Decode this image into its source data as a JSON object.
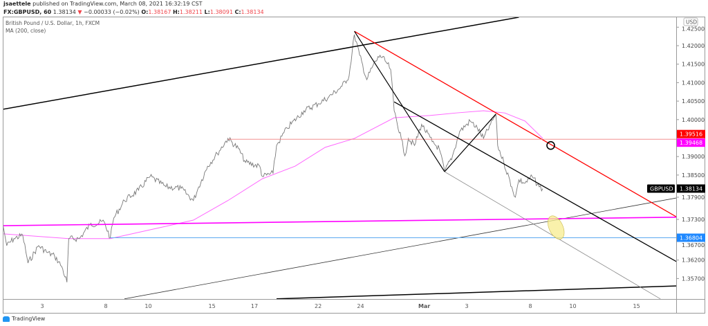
{
  "header": {
    "author": "jsaettele",
    "published": "published on TradingView.com, March 08, 2021 16:32:19 CST",
    "symbol": "FX:GBPUSD, 60",
    "last": "1.38134",
    "change": "−0.00033 (−0.02%)",
    "o_label": "O:",
    "o": "1.38167",
    "h_label": "H:",
    "h": "1.38211",
    "l_label": "L:",
    "l": "1.38091",
    "c_label": "C:",
    "c": "1.38134",
    "down_icon": "triangle-down-icon"
  },
  "legend": {
    "title": "British Pound / U.S. Dollar, 1h, FXCM",
    "ma": "MA (200, close)"
  },
  "footer": {
    "logo": "TradingView"
  },
  "colors": {
    "price": "#787878",
    "ma": "#ff66ff",
    "trend_red": "#ff0000",
    "magenta": "#ff00ff",
    "blue": "#2196f3",
    "black": "#000000",
    "highlight": "#f7ec8f"
  },
  "chart_data": {
    "type": "line",
    "symbol": "GBPUSD",
    "currency_label": "USD",
    "ylim": [
      1.3515,
      1.4286
    ],
    "y_ticks": [
      "1.42500",
      "1.42000",
      "1.41500",
      "1.41000",
      "1.40500",
      "1.40000",
      "1.39000",
      "1.38500",
      "1.37900",
      "1.37300",
      "1.36700",
      "1.36200",
      "1.35700"
    ],
    "x_ticks": [
      {
        "date": "2021-02-03",
        "label": "3"
      },
      {
        "date": "2021-02-08",
        "label": "8"
      },
      {
        "date": "2021-02-10",
        "label": "10"
      },
      {
        "date": "2021-02-15",
        "label": "15"
      },
      {
        "date": "2021-02-17",
        "label": "17"
      },
      {
        "date": "2021-02-22",
        "label": "22"
      },
      {
        "date": "2021-02-24",
        "label": "24"
      },
      {
        "date": "2021-03-01",
        "label": "Mar"
      },
      {
        "date": "2021-03-03",
        "label": "3"
      },
      {
        "date": "2021-03-08",
        "label": "8"
      },
      {
        "date": "2021-03-10",
        "label": "10"
      },
      {
        "date": "2021-03-15",
        "label": "15"
      }
    ],
    "series": [
      {
        "name": "GBPUSD",
        "points": [
          [
            "2021-02-01 04:00",
            1.3711
          ],
          [
            "2021-02-01 08:00",
            1.3659
          ],
          [
            "2021-02-01 16:00",
            1.3678
          ],
          [
            "2021-02-02 02:00",
            1.3687
          ],
          [
            "2021-02-02 08:00",
            1.3612
          ],
          [
            "2021-02-02 20:00",
            1.3659
          ],
          [
            "2021-02-03 06:00",
            1.364
          ],
          [
            "2021-02-03 14:00",
            1.3631
          ],
          [
            "2021-02-03 22:00",
            1.3603
          ],
          [
            "2021-02-04 04:00",
            1.356
          ],
          [
            "2021-02-04 06:00",
            1.3678
          ],
          [
            "2021-02-04 18:00",
            1.3678
          ],
          [
            "2021-02-05 06:00",
            1.3715
          ],
          [
            "2021-02-05 22:00",
            1.3724
          ],
          [
            "2021-02-08 05:00",
            1.368
          ],
          [
            "2021-02-08 09:00",
            1.3734
          ],
          [
            "2021-02-08 21:00",
            1.3781
          ],
          [
            "2021-02-09 13:00",
            1.3809
          ],
          [
            "2021-02-10 02:00",
            1.3846
          ],
          [
            "2021-02-10 20:00",
            1.3818
          ],
          [
            "2021-02-11 13:00",
            1.3814
          ],
          [
            "2021-02-12 03:00",
            1.3781
          ],
          [
            "2021-02-12 09:00",
            1.3818
          ],
          [
            "2021-02-12 19:00",
            1.3874
          ],
          [
            "2021-02-15 06:00",
            1.3908
          ],
          [
            "2021-02-15 18:00",
            1.3949
          ],
          [
            "2021-02-16 06:00",
            1.3921
          ],
          [
            "2021-02-16 14:00",
            1.3884
          ],
          [
            "2021-02-17 06:00",
            1.3874
          ],
          [
            "2021-02-17 09:00",
            1.3846
          ],
          [
            "2021-02-17 21:00",
            1.3855
          ],
          [
            "2021-02-18 01:00",
            1.393
          ],
          [
            "2021-02-18 13:00",
            1.3977
          ],
          [
            "2021-02-19 08:00",
            1.4024
          ],
          [
            "2021-02-22 00:00",
            1.4043
          ],
          [
            "2021-02-22 12:00",
            1.4061
          ],
          [
            "2021-02-23 03:00",
            1.409
          ],
          [
            "2021-02-23 11:00",
            1.4118
          ],
          [
            "2021-02-23 17:00",
            1.423
          ],
          [
            "2021-02-23 23:00",
            1.4174
          ],
          [
            "2021-02-24 07:00",
            1.4108
          ],
          [
            "2021-02-24 14:00",
            1.4146
          ],
          [
            "2021-02-24 22:00",
            1.4174
          ],
          [
            "2021-02-25 05:00",
            1.4155
          ],
          [
            "2021-02-25 10:00",
            1.4136
          ],
          [
            "2021-02-25 14:00",
            1.4024
          ],
          [
            "2021-02-25 22:00",
            1.3949
          ],
          [
            "2021-02-26 02:00",
            1.3902
          ],
          [
            "2021-02-26 06:00",
            1.3949
          ],
          [
            "2021-02-26 13:00",
            1.393
          ],
          [
            "2021-02-26 21:00",
            1.3987
          ],
          [
            "2021-03-01 09:00",
            1.394
          ],
          [
            "2021-03-01 17:00",
            1.3921
          ],
          [
            "2021-03-01 23:00",
            1.3859
          ],
          [
            "2021-03-02 08:00",
            1.3902
          ],
          [
            "2021-03-02 16:00",
            1.3968
          ],
          [
            "2021-03-03 04:00",
            1.3996
          ],
          [
            "2021-03-03 12:00",
            1.3977
          ],
          [
            "2021-03-03 19:00",
            1.3949
          ],
          [
            "2021-03-04 03:00",
            1.3987
          ],
          [
            "2021-03-04 09:00",
            1.4015
          ],
          [
            "2021-03-04 11:00",
            1.393
          ],
          [
            "2021-03-04 18:00",
            1.3884
          ],
          [
            "2021-03-05 03:00",
            1.3818
          ],
          [
            "2021-03-05 07:00",
            1.379
          ],
          [
            "2021-03-05 11:00",
            1.3837
          ],
          [
            "2021-03-05 18:00",
            1.3828
          ],
          [
            "2021-03-08 02:00",
            1.3846
          ],
          [
            "2021-03-08 10:00",
            1.3818
          ],
          [
            "2021-03-08 14:00",
            1.38134
          ]
        ]
      },
      {
        "name": "MA (200, close)",
        "points": [
          [
            "2021-02-01 04:00",
            1.3691
          ],
          [
            "2021-02-04 06:00",
            1.3678
          ],
          [
            "2021-02-08 05:00",
            1.3678
          ],
          [
            "2021-02-10 10:00",
            1.3706
          ],
          [
            "2021-02-12 03:00",
            1.3728
          ],
          [
            "2021-02-15 18:00",
            1.3781
          ],
          [
            "2021-02-17 09:00",
            1.384
          ],
          [
            "2021-02-18 22:00",
            1.3874
          ],
          [
            "2021-02-22 08:00",
            1.3925
          ],
          [
            "2021-02-23 17:00",
            1.3949
          ],
          [
            "2021-02-25 14:00",
            1.4005
          ],
          [
            "2021-03-01 06:00",
            1.4011
          ],
          [
            "2021-03-02 12:00",
            1.4018
          ],
          [
            "2021-03-03 19:00",
            1.4024
          ],
          [
            "2021-03-04 19:00",
            1.4018
          ],
          [
            "2021-03-05 18:00",
            1.3996
          ],
          [
            "2021-03-08 14:00",
            1.3949
          ]
        ]
      }
    ],
    "drawings": [
      {
        "type": "trendline",
        "color": "#000000",
        "width": 1.5,
        "from": [
          "2021-02-01 04:00",
          1.4028
        ],
        "to": [
          "2021-03-05 11:00",
          1.4277
        ]
      },
      {
        "type": "trendline",
        "color": "#000000",
        "width": 1.5,
        "from": [
          "2021-02-18 01:00",
          1.3515
        ],
        "to": [
          "2021-03-16 21:00",
          1.355
        ]
      },
      {
        "type": "trendline",
        "color": "#333333",
        "width": 0.8,
        "from": [
          "2021-02-08 21:00",
          1.3515
        ],
        "to": [
          "2021-03-16 21:00",
          1.3788
        ]
      },
      {
        "type": "trendline",
        "color": "#ff0000",
        "width": 1.3,
        "from": [
          "2021-02-23 17:00",
          1.4239
        ],
        "to": [
          "2021-03-16 21:00",
          1.3737
        ]
      },
      {
        "type": "trendline",
        "color": "#ff00ff",
        "width": 1.6,
        "from": [
          "2021-02-01 04:00",
          1.3713
        ],
        "to": [
          "2021-03-16 21:00",
          1.3736
        ]
      },
      {
        "type": "horizontal",
        "color": "#f08080",
        "width": 0.8,
        "from": [
          "2021-02-15 18:00",
          1.39468
        ],
        "to": [
          "2021-03-16 21:00",
          1.39468
        ]
      },
      {
        "type": "horizontal",
        "color": "#5aa9f0",
        "width": 1,
        "from": [
          "2021-02-08 05:00",
          1.36804
        ],
        "to": [
          "2021-03-16 21:00",
          1.36804
        ]
      },
      {
        "type": "trendline",
        "color": "#000000",
        "width": 1.2,
        "from": [
          "2021-02-23 17:00",
          1.4239
        ],
        "to": [
          "2021-03-01 23:00",
          1.3859
        ]
      },
      {
        "type": "trendline",
        "color": "#000000",
        "width": 1.2,
        "from": [
          "2021-03-01 23:00",
          1.3859
        ],
        "to": [
          "2021-03-04 09:00",
          1.4015
        ]
      },
      {
        "type": "trendline",
        "color": "#000000",
        "width": 1.3,
        "from": [
          "2021-02-25 14:00",
          1.4048
        ],
        "to": [
          "2021-03-16 21:00",
          1.3616
        ]
      },
      {
        "type": "trendline",
        "color": "#888888",
        "width": 0.8,
        "from": [
          "2021-03-01 23:00",
          1.3859
        ],
        "to": [
          "2021-03-16 03:00",
          1.3515
        ]
      }
    ],
    "markers": [
      {
        "type": "circle",
        "at": [
          "2021-03-08 23:00",
          1.393
        ],
        "color": "#000000"
      },
      {
        "type": "ellipse",
        "at": [
          "2021-03-09 05:00",
          1.3708
        ],
        "color": "#f7ec8f"
      }
    ],
    "price_tags": [
      {
        "value": "1.39516",
        "color": "#ff0000"
      },
      {
        "value": "1.39468",
        "color": "#ff00ff"
      },
      {
        "value": "1.38134",
        "color": "#000000",
        "label": "GBPUSD"
      },
      {
        "value": "1.36804",
        "color": "#1e88ff"
      }
    ]
  }
}
